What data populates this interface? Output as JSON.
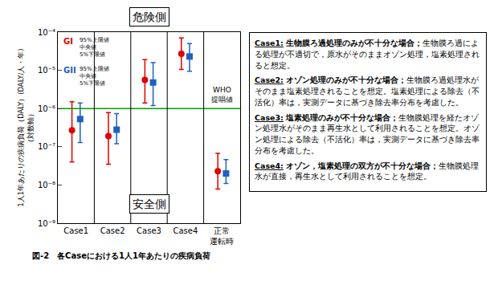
{
  "chart_data": {
    "type": "scatter",
    "log": "y",
    "y_label": "1人1年あたりの疾病負荷（DALY）(DALY/人・年)\n（対数軸）",
    "categories": [
      "Case1",
      "Case2",
      "Case3",
      "Case4",
      "正常\n運転時"
    ],
    "series": [
      {
        "name": "GI",
        "color": "#e00000",
        "marker": "circle",
        "values": [
          2.7e-07,
          1.9e-07,
          5.6e-06,
          2.7e-05,
          2.3e-08
        ],
        "upper": [
          1.5e-06,
          7.8e-07,
          1.9e-05,
          7e-05,
          6.7e-08
        ],
        "lower": [
          4e-08,
          3.5e-08,
          1.4e-06,
          1.05e-05,
          7.8e-09
        ]
      },
      {
        "name": "GII",
        "color": "#2060c0",
        "marker": "square",
        "values": [
          5.3e-07,
          2.8e-07,
          4.8e-06,
          2.3e-05,
          2e-08
        ],
        "upper": [
          1.4e-06,
          7.4e-07,
          1.6e-05,
          5e-05,
          4.6e-08
        ],
        "lower": [
          1.3e-07,
          1.2e-07,
          1.2e-06,
          9.5e-06,
          1.1e-08
        ]
      }
    ],
    "legend_labels": [
      "95%上限値",
      "中央値",
      "5%下限値"
    ],
    "reference_line": {
      "value": 1e-06,
      "label": "WHO\n提唱値",
      "color": "#00a000"
    },
    "danger_label": "危険側",
    "safe_label": "安全側",
    "ylim": [
      1e-09,
      0.0001
    ],
    "yticks": [
      {
        "value": 1e-09,
        "label": "10⁻⁹"
      },
      {
        "value": 1e-08,
        "label": "10⁻⁸"
      },
      {
        "value": 1e-07,
        "label": "10⁻⁷"
      },
      {
        "value": 1e-06,
        "label": "10⁻⁶"
      },
      {
        "value": 1e-05,
        "label": "10⁻⁵"
      },
      {
        "value": 0.0001,
        "label": "10⁻⁴"
      }
    ],
    "grid": false
  },
  "caption": "図-2　各Caseにおける1人1年あたりの疾病負荷",
  "notes": [
    {
      "label": "Case1:",
      "heading": "生物膜ろ過処理のみが不十分な場合；",
      "text": "生物膜ろ過による処理が不適切で，原水がそのままオゾン処理，塩素処理されると想定。"
    },
    {
      "label": "Case2:",
      "heading": "オゾン処理のみが不十分な場合；",
      "text": "生物膜ろ過処理水がそのまま塩素処理されることを想定。塩素処理による除去（不活化）率は，実測データに基づき除去率分布を考慮した。"
    },
    {
      "label": "Case3:",
      "heading": "塩素処理のみが不十分な場合；",
      "text": "生物膜処理を経たオゾン処理水がそのまま再生水として利用されることを想定。オゾン処理による除去（不活化）率は，実測データに基づき除去率分布を考慮した。"
    },
    {
      "label": "Case4:",
      "heading": "オゾン，塩素処理の双方が不十分な場合；",
      "text": "生物膜処理水が直接，再生水として利用されることを想定。"
    }
  ]
}
